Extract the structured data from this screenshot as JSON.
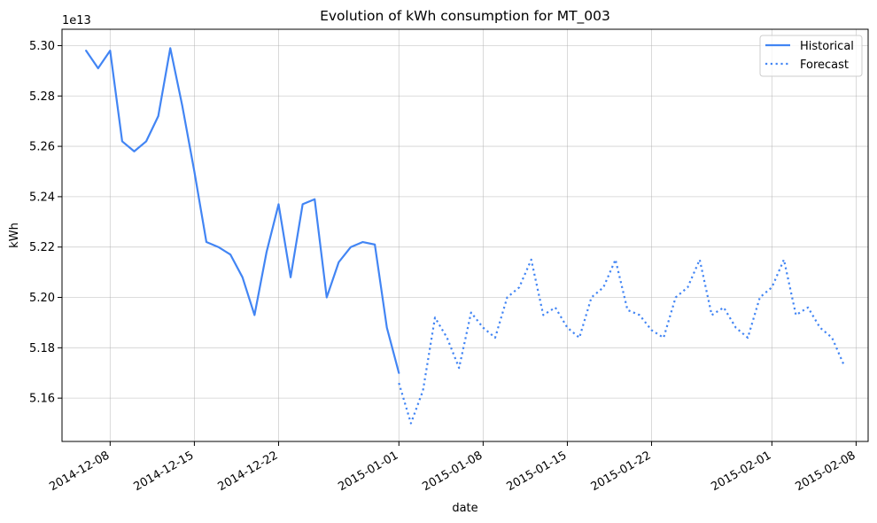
{
  "chart_data": {
    "type": "line",
    "title": "Evolution of kWh consumption for MT_003",
    "xlabel": "date",
    "ylabel": "kWh",
    "y_offset_label": "1e13",
    "y_scale_factor": 10000000000000.0,
    "xlim": [
      "2014-12-04",
      "2015-02-09"
    ],
    "ylim": [
      5.1428,
      5.3065
    ],
    "grid": true,
    "legend_position": "top-right",
    "x_ticks": [
      "2014-12-08",
      "2014-12-15",
      "2014-12-22",
      "2015-01-01",
      "2015-01-08",
      "2015-01-15",
      "2015-01-22",
      "2015-02-01",
      "2015-02-08"
    ],
    "y_ticks": [
      5.16,
      5.18,
      5.2,
      5.22,
      5.24,
      5.26,
      5.28,
      5.3
    ],
    "y_tick_labels": [
      "5.16",
      "5.18",
      "5.20",
      "5.22",
      "5.24",
      "5.26",
      "5.28",
      "5.30"
    ],
    "series": [
      {
        "name": "Historical",
        "style": "solid",
        "color": "#4285f4",
        "x": [
          "2014-12-06",
          "2014-12-07",
          "2014-12-08",
          "2014-12-09",
          "2014-12-10",
          "2014-12-11",
          "2014-12-12",
          "2014-12-13",
          "2014-12-14",
          "2014-12-15",
          "2014-12-16",
          "2014-12-17",
          "2014-12-18",
          "2014-12-19",
          "2014-12-20",
          "2014-12-21",
          "2014-12-22",
          "2014-12-23",
          "2014-12-24",
          "2014-12-25",
          "2014-12-26",
          "2014-12-27",
          "2014-12-28",
          "2014-12-29",
          "2014-12-30",
          "2014-12-31",
          "2015-01-01"
        ],
        "y": [
          5.298,
          5.291,
          5.298,
          5.262,
          5.258,
          5.262,
          5.272,
          5.299,
          5.276,
          5.25,
          5.222,
          5.22,
          5.217,
          5.208,
          5.193,
          5.218,
          5.237,
          5.208,
          5.237,
          5.239,
          5.2,
          5.214,
          5.22,
          5.222,
          5.221,
          5.188,
          5.17
        ]
      },
      {
        "name": "Forecast",
        "style": "dotted",
        "color": "#4285f4",
        "x": [
          "2015-01-01",
          "2015-01-02",
          "2015-01-03",
          "2015-01-04",
          "2015-01-05",
          "2015-01-06",
          "2015-01-07",
          "2015-01-08",
          "2015-01-09",
          "2015-01-10",
          "2015-01-11",
          "2015-01-12",
          "2015-01-13",
          "2015-01-14",
          "2015-01-15",
          "2015-01-16",
          "2015-01-17",
          "2015-01-18",
          "2015-01-19",
          "2015-01-20",
          "2015-01-21",
          "2015-01-22",
          "2015-01-23",
          "2015-01-24",
          "2015-01-25",
          "2015-01-26",
          "2015-01-27",
          "2015-01-28",
          "2015-01-29",
          "2015-01-30",
          "2015-01-31",
          "2015-02-01",
          "2015-02-02",
          "2015-02-03",
          "2015-02-04",
          "2015-02-05",
          "2015-02-06",
          "2015-02-07"
        ],
        "y": [
          5.166,
          5.15,
          5.163,
          5.192,
          5.184,
          5.172,
          5.194,
          5.188,
          5.184,
          5.2,
          5.204,
          5.215,
          5.193,
          5.196,
          5.188,
          5.184,
          5.2,
          5.204,
          5.215,
          5.195,
          5.193,
          5.187,
          5.184,
          5.2,
          5.204,
          5.215,
          5.193,
          5.196,
          5.188,
          5.184,
          5.2,
          5.204,
          5.215,
          5.193,
          5.196,
          5.188,
          5.184,
          5.173
        ]
      }
    ]
  }
}
